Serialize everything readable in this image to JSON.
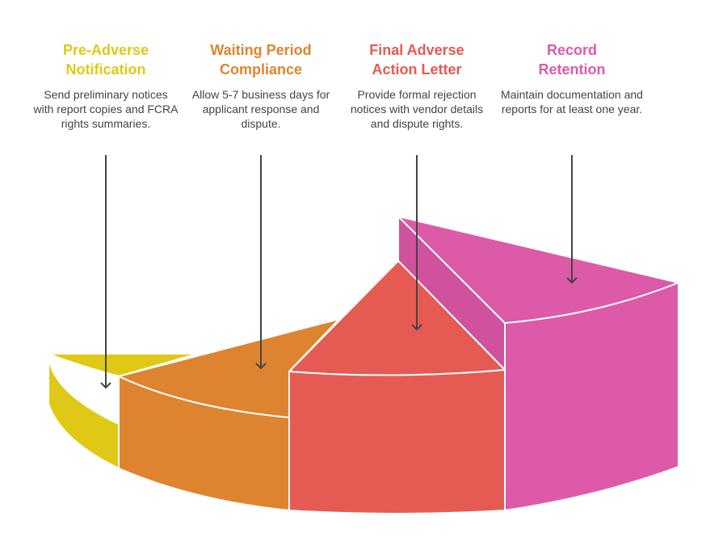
{
  "steps": [
    {
      "title_line1": "Pre-Adverse",
      "title_line2": "Notification",
      "description": "Send preliminary notices with report copies and FCRA rights summaries.",
      "color": "#E0C916"
    },
    {
      "title_line1": "Waiting Period",
      "title_line2": "Compliance",
      "description": "Allow 5-7 business days for applicant response and dispute.",
      "color": "#DE8430"
    },
    {
      "title_line1": "Final Adverse",
      "title_line2": "Action Letter",
      "description": "Provide formal rejection notices with vendor details and dispute rights.",
      "color": "#E55A52"
    },
    {
      "title_line1": "Record",
      "title_line2": "Retention",
      "description": "Maintain documentation and reports for at least one year.",
      "color": "#DD5AA8"
    }
  ]
}
